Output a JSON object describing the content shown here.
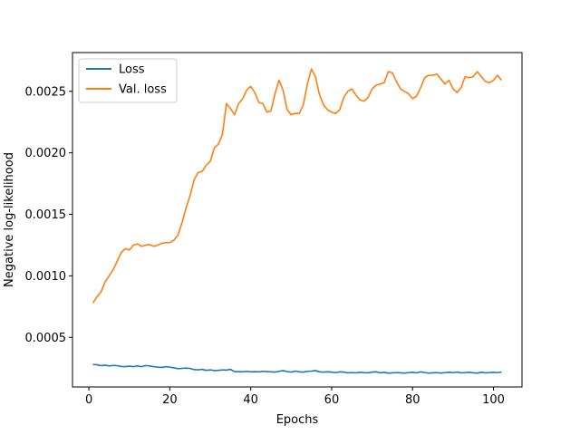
{
  "chart_data": {
    "type": "line",
    "title": "",
    "xlabel": "Epochs",
    "ylabel": "Negative log-likelihood",
    "xlim": [
      -4.05,
      107.05
    ],
    "ylim": [
      9.7e-05,
      0.002815
    ],
    "xticks": [
      0,
      20,
      40,
      60,
      80,
      100
    ],
    "xtick_labels": [
      "0",
      "20",
      "40",
      "60",
      "80",
      "100"
    ],
    "yticks": [
      0.0005,
      0.001,
      0.0015,
      0.002,
      0.0025
    ],
    "ytick_labels": [
      "0.0005",
      "0.0010",
      "0.0015",
      "0.0020",
      "0.0025"
    ],
    "grid": false,
    "legend_position": "upper-left",
    "x": [
      1,
      2,
      3,
      4,
      5,
      6,
      7,
      8,
      9,
      10,
      11,
      12,
      13,
      14,
      15,
      16,
      17,
      18,
      19,
      20,
      21,
      22,
      23,
      24,
      25,
      26,
      27,
      28,
      29,
      30,
      31,
      32,
      33,
      34,
      35,
      36,
      37,
      38,
      39,
      40,
      41,
      42,
      43,
      44,
      45,
      46,
      47,
      48,
      49,
      50,
      51,
      52,
      53,
      54,
      55,
      56,
      57,
      58,
      59,
      60,
      61,
      62,
      63,
      64,
      65,
      66,
      67,
      68,
      69,
      70,
      71,
      72,
      73,
      74,
      75,
      76,
      77,
      78,
      79,
      80,
      81,
      82,
      83,
      84,
      85,
      86,
      87,
      88,
      89,
      90,
      91,
      92,
      93,
      94,
      95,
      96,
      97,
      98,
      99,
      100,
      101,
      102
    ],
    "series": [
      {
        "name": "Loss",
        "color": "#1f77b4",
        "values": [
          0.00028,
          0.000278,
          0.00027,
          0.000274,
          0.000268,
          0.000272,
          0.00027,
          0.000263,
          0.000262,
          0.000266,
          0.000262,
          0.000268,
          0.000262,
          0.000271,
          0.000268,
          0.000262,
          0.000258,
          0.000256,
          0.000262,
          0.000258,
          0.000252,
          0.000246,
          0.000248,
          0.00025,
          0.000248,
          0.000238,
          0.000236,
          0.00024,
          0.000232,
          0.000236,
          0.00023,
          0.000232,
          0.000236,
          0.000234,
          0.00024,
          0.000222,
          0.000222,
          0.00022,
          0.000224,
          0.00022,
          0.000222,
          0.00022,
          0.000224,
          0.000222,
          0.00022,
          0.000218,
          0.000224,
          0.00023,
          0.000222,
          0.000218,
          0.000226,
          0.00022,
          0.000218,
          0.000224,
          0.000226,
          0.00023,
          0.00022,
          0.000218,
          0.00022,
          0.000218,
          0.000214,
          0.00022,
          0.000218,
          0.000212,
          0.000214,
          0.000212,
          0.000216,
          0.000214,
          0.000212,
          0.000218,
          0.00022,
          0.000212,
          0.000216,
          0.00021,
          0.000212,
          0.000214,
          0.000212,
          0.00021,
          0.000214,
          0.000216,
          0.000212,
          0.00022,
          0.000214,
          0.00021,
          0.000212,
          0.000214,
          0.00021,
          0.000214,
          0.000216,
          0.000214,
          0.000218,
          0.000212,
          0.000214,
          0.000216,
          0.000212,
          0.00021,
          0.000216,
          0.000212,
          0.000214,
          0.000216,
          0.000214,
          0.000218
        ]
      },
      {
        "name": "Val. loss",
        "color": "#ff7f0e",
        "values": [
          0.00078,
          0.00083,
          0.00087,
          0.00095,
          0.001,
          0.00105,
          0.00112,
          0.00119,
          0.00122,
          0.00121,
          0.00125,
          0.00126,
          0.00124,
          0.00125,
          0.001255,
          0.00124,
          0.00125,
          0.001265,
          0.00127,
          0.00127,
          0.00129,
          0.00133,
          0.00143,
          0.00155,
          0.00165,
          0.00178,
          0.00184,
          0.00185,
          0.0019,
          0.00193,
          0.00204,
          0.00207,
          0.00215,
          0.0024,
          0.00236,
          0.00231,
          0.0024,
          0.00244,
          0.00251,
          0.00254,
          0.00249,
          0.00241,
          0.0024,
          0.00233,
          0.00234,
          0.00248,
          0.00259,
          0.00251,
          0.00235,
          0.00231,
          0.00232,
          0.00232,
          0.00239,
          0.00256,
          0.00268,
          0.00262,
          0.00247,
          0.00239,
          0.00235,
          0.00233,
          0.00232,
          0.00235,
          0.00245,
          0.0025,
          0.00252,
          0.00247,
          0.00243,
          0.00242,
          0.00245,
          0.00252,
          0.00255,
          0.00256,
          0.00257,
          0.00266,
          0.00265,
          0.00258,
          0.00252,
          0.0025,
          0.00248,
          0.00244,
          0.00246,
          0.00253,
          0.00261,
          0.00263,
          0.00263,
          0.00264,
          0.0026,
          0.00256,
          0.00259,
          0.00252,
          0.00249,
          0.00253,
          0.00262,
          0.00261,
          0.00262,
          0.00266,
          0.00262,
          0.00258,
          0.00257,
          0.00259,
          0.00263,
          0.00259
        ]
      }
    ]
  }
}
